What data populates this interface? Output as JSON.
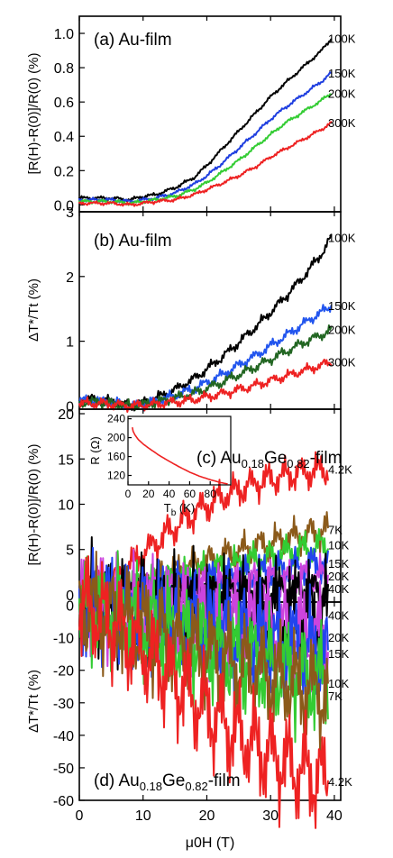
{
  "figure": {
    "xlabel": "μ0H (T)",
    "x_ticks": [
      0,
      10,
      20,
      30,
      40
    ]
  },
  "chart_data": [
    {
      "type": "line",
      "panel_label": "(a) Au-film",
      "ylabel": "[R(H)-R(0)]/R(0) (%)",
      "xlim": [
        0,
        41
      ],
      "ylim": [
        -0.04,
        1.1
      ],
      "y_ticks": [
        0.0,
        0.2,
        0.4,
        0.6,
        0.8,
        1.0
      ],
      "y_tick_labels": [
        "0.0",
        "0.2",
        "0.4",
        "0.6",
        "0.8",
        "1.0"
      ],
      "series": [
        {
          "name": "100K",
          "color": "#000000",
          "x": [
            0,
            5,
            8,
            10,
            12,
            15,
            18,
            20,
            22,
            25,
            28,
            30,
            32,
            35,
            38,
            39.5
          ],
          "y": [
            0.04,
            0.04,
            0.03,
            0.05,
            0.06,
            0.1,
            0.16,
            0.23,
            0.31,
            0.43,
            0.55,
            0.63,
            0.7,
            0.8,
            0.9,
            0.97
          ]
        },
        {
          "name": "150K",
          "color": "#1f3fe0",
          "x": [
            0,
            5,
            8,
            10,
            12,
            15,
            18,
            20,
            22,
            25,
            28,
            30,
            32,
            35,
            38,
            39.5
          ],
          "y": [
            0.03,
            0.03,
            0.02,
            0.03,
            0.04,
            0.07,
            0.12,
            0.17,
            0.23,
            0.33,
            0.43,
            0.5,
            0.56,
            0.64,
            0.72,
            0.77
          ]
        },
        {
          "name": "200K",
          "color": "#33cc33",
          "x": [
            0,
            5,
            8,
            10,
            12,
            15,
            18,
            20,
            22,
            25,
            28,
            30,
            32,
            35,
            38,
            39.5
          ],
          "y": [
            0.02,
            0.02,
            0.01,
            0.02,
            0.03,
            0.05,
            0.09,
            0.13,
            0.18,
            0.26,
            0.35,
            0.41,
            0.47,
            0.54,
            0.61,
            0.65
          ]
        },
        {
          "name": "300K",
          "color": "#ee2222",
          "x": [
            0,
            5,
            8,
            10,
            12,
            15,
            18,
            20,
            22,
            25,
            28,
            30,
            32,
            35,
            38,
            39.5
          ],
          "y": [
            0.01,
            0.01,
            0.0,
            0.01,
            0.02,
            0.03,
            0.06,
            0.09,
            0.12,
            0.17,
            0.23,
            0.28,
            0.32,
            0.38,
            0.44,
            0.48
          ]
        }
      ]
    },
    {
      "type": "line",
      "panel_label": "(b) Au-film",
      "ylabel": "ΔT*/Tt (%)",
      "xlim": [
        0,
        41
      ],
      "ylim": [
        -0.05,
        3.0
      ],
      "y_ticks": [
        0,
        1,
        2,
        3
      ],
      "y_tick_labels": [
        "0",
        "1",
        "2",
        "3"
      ],
      "series": [
        {
          "name": "100K",
          "color": "#000000",
          "x": [
            0,
            3,
            6,
            8,
            10,
            12,
            15,
            18,
            20,
            22,
            25,
            28,
            30,
            32,
            35,
            38,
            39.5
          ],
          "y": [
            0.1,
            0.1,
            0.05,
            0.0,
            0.05,
            0.12,
            0.25,
            0.42,
            0.57,
            0.72,
            0.98,
            1.25,
            1.45,
            1.65,
            1.98,
            2.35,
            2.6
          ]
        },
        {
          "name": "150K",
          "color": "#2255ee",
          "x": [
            0,
            3,
            6,
            8,
            10,
            12,
            15,
            18,
            20,
            22,
            25,
            28,
            30,
            32,
            35,
            38,
            39.5
          ],
          "y": [
            0.08,
            0.08,
            0.04,
            0.0,
            0.03,
            0.08,
            0.16,
            0.27,
            0.36,
            0.46,
            0.63,
            0.8,
            0.93,
            1.06,
            1.26,
            1.45,
            1.55
          ]
        },
        {
          "name": "200K",
          "color": "#226622",
          "x": [
            0,
            3,
            6,
            8,
            10,
            12,
            15,
            18,
            20,
            22,
            25,
            28,
            30,
            32,
            35,
            38,
            39.5
          ],
          "y": [
            0.06,
            0.06,
            0.03,
            0.0,
            0.02,
            0.06,
            0.12,
            0.2,
            0.27,
            0.35,
            0.48,
            0.62,
            0.72,
            0.82,
            0.97,
            1.1,
            1.18
          ]
        },
        {
          "name": "300K",
          "color": "#ee2222",
          "x": [
            0,
            3,
            6,
            8,
            10,
            12,
            15,
            18,
            20,
            22,
            25,
            28,
            30,
            32,
            35,
            38,
            39.5
          ],
          "y": [
            0.04,
            0.04,
            0.02,
            0.0,
            0.01,
            0.03,
            0.06,
            0.1,
            0.14,
            0.18,
            0.25,
            0.33,
            0.39,
            0.45,
            0.54,
            0.63,
            0.68
          ]
        }
      ]
    },
    {
      "type": "line",
      "panel_label_main": "(c) Au",
      "panel_label_sub1": "0.18",
      "panel_label_mid": "Ge",
      "panel_label_sub2": "0.82",
      "panel_label_tail": "-film",
      "ylabel": "[R(H)-R(0)]/R(0) (%)",
      "xlim": [
        0,
        41
      ],
      "ylim": [
        -0.8,
        20.5
      ],
      "y_ticks": [
        0,
        5,
        10,
        15,
        20
      ],
      "y_tick_labels": [
        "0",
        "5",
        "10",
        "15",
        "20"
      ],
      "series": [
        {
          "name": "4.2K",
          "color": "#ee2222",
          "x": [
            0,
            2,
            4,
            6,
            8,
            10,
            12,
            14,
            16,
            18,
            20,
            22,
            24,
            26,
            28,
            30,
            32,
            34,
            36,
            38,
            39
          ],
          "y": [
            0,
            0.4,
            1.2,
            2.2,
            3.3,
            4.5,
            5.7,
            6.9,
            8.0,
            9.0,
            9.9,
            10.7,
            11.3,
            11.9,
            12.4,
            12.8,
            13.1,
            13.4,
            13.6,
            13.8,
            13.9
          ]
        },
        {
          "name": "7K",
          "color": "#8b5a1a",
          "x": [
            0,
            5,
            10,
            15,
            20,
            25,
            30,
            35,
            39
          ],
          "y": [
            0,
            0.5,
            1.4,
            2.5,
            3.6,
            4.7,
            5.7,
            6.6,
            7.2
          ]
        },
        {
          "name": "10K",
          "color": "#33cc33",
          "x": [
            0,
            5,
            10,
            15,
            20,
            25,
            30,
            35,
            39
          ],
          "y": [
            0,
            0.35,
            1.0,
            1.8,
            2.6,
            3.4,
            4.2,
            5.0,
            5.5
          ]
        },
        {
          "name": "15K",
          "color": "#2244ee",
          "x": [
            0,
            5,
            10,
            15,
            20,
            25,
            30,
            35,
            39
          ],
          "y": [
            0,
            0.2,
            0.6,
            1.1,
            1.6,
            2.2,
            2.7,
            3.2,
            3.5
          ]
        },
        {
          "name": "20K",
          "color": "#cc44dd",
          "x": [
            0,
            5,
            10,
            15,
            20,
            25,
            30,
            35,
            39
          ],
          "y": [
            0,
            0.12,
            0.4,
            0.7,
            1.0,
            1.4,
            1.7,
            2.0,
            2.2
          ]
        },
        {
          "name": "40K",
          "color": "#000000",
          "x": [
            0,
            5,
            10,
            15,
            20,
            25,
            30,
            35,
            39
          ],
          "y": [
            0,
            0.05,
            0.15,
            0.25,
            0.35,
            0.45,
            0.55,
            0.65,
            0.7
          ]
        }
      ],
      "inset": {
        "type": "line",
        "xlabel_main": "T",
        "xlabel_sub": "b",
        "xlabel_tail": " (K)",
        "ylabel": "R (Ω)",
        "xlim": [
          0,
          100
        ],
        "ylim": [
          100,
          245
        ],
        "x_ticks": [
          0,
          20,
          40,
          60,
          80
        ],
        "y_ticks": [
          120,
          160,
          200,
          240
        ],
        "series": [
          {
            "name": "R",
            "color": "#ee2222",
            "x": [
              4.2,
              5,
              7,
              10,
              15,
              20,
              30,
              40,
              50,
              60,
              70,
              80,
              90,
              97
            ],
            "y": [
              222,
              213,
              205,
              196,
              186,
              178,
              163,
              150,
              138,
              127,
              118,
              111,
              105,
              102
            ]
          }
        ]
      }
    },
    {
      "type": "line",
      "panel_label_main": "(d) Au",
      "panel_label_sub1": "0.18",
      "panel_label_mid": "Ge",
      "panel_label_sub2": "0.82",
      "panel_label_tail": "-film",
      "ylabel": "ΔT*/Tt (%)",
      "xlim": [
        0,
        41
      ],
      "ylim": [
        -60,
        1
      ],
      "y_ticks": [
        0,
        -10,
        -20,
        -30,
        -40,
        -50,
        -60
      ],
      "y_tick_labels": [
        "0",
        "-10",
        "-20",
        "-30",
        "-40",
        "-50",
        "-60"
      ],
      "series": [
        {
          "name": "40K",
          "color": "#000000",
          "x": [
            0,
            5,
            10,
            15,
            20,
            25,
            30,
            35,
            39
          ],
          "y": [
            0,
            -0.3,
            -0.7,
            -1.1,
            -1.5,
            -1.9,
            -2.3,
            -2.7,
            -3.0
          ]
        },
        {
          "name": "20K",
          "color": "#cc44dd",
          "x": [
            0,
            5,
            10,
            15,
            20,
            25,
            30,
            35,
            39
          ],
          "y": [
            0,
            -0.8,
            -2.0,
            -3.3,
            -4.7,
            -6.1,
            -7.5,
            -8.8,
            -9.8
          ]
        },
        {
          "name": "15K",
          "color": "#2244ee",
          "x": [
            0,
            5,
            10,
            15,
            20,
            25,
            30,
            35,
            39
          ],
          "y": [
            0,
            -1.3,
            -3.2,
            -5.2,
            -7.3,
            -9.4,
            -11.4,
            -13.3,
            -14.8
          ]
        },
        {
          "name": "10K",
          "color": "#33cc33",
          "x": [
            0,
            5,
            10,
            15,
            20,
            25,
            30,
            35,
            39
          ],
          "y": [
            0,
            -2.5,
            -5.8,
            -9.3,
            -12.6,
            -15.8,
            -18.8,
            -21.7,
            -24.0
          ]
        },
        {
          "name": "7K",
          "color": "#8b5a1a",
          "x": [
            0,
            5,
            10,
            15,
            20,
            25,
            30,
            35,
            39
          ],
          "y": [
            0,
            -3.0,
            -7.0,
            -11.0,
            -14.8,
            -18.5,
            -21.9,
            -25.1,
            -27.5
          ]
        },
        {
          "name": "4.2K",
          "color": "#ee2222",
          "x": [
            0,
            2,
            4,
            6,
            8,
            10,
            12,
            14,
            16,
            18,
            20,
            22,
            24,
            26,
            28,
            30,
            32,
            34,
            36,
            38,
            39
          ],
          "y": [
            0,
            -1.5,
            -4.0,
            -7.0,
            -10.5,
            -14.0,
            -17.8,
            -21.5,
            -25.2,
            -28.8,
            -32.2,
            -35.5,
            -38.5,
            -41.3,
            -43.9,
            -46.3,
            -48.5,
            -50.4,
            -52.0,
            -53.5,
            -54.2
          ]
        }
      ]
    }
  ]
}
